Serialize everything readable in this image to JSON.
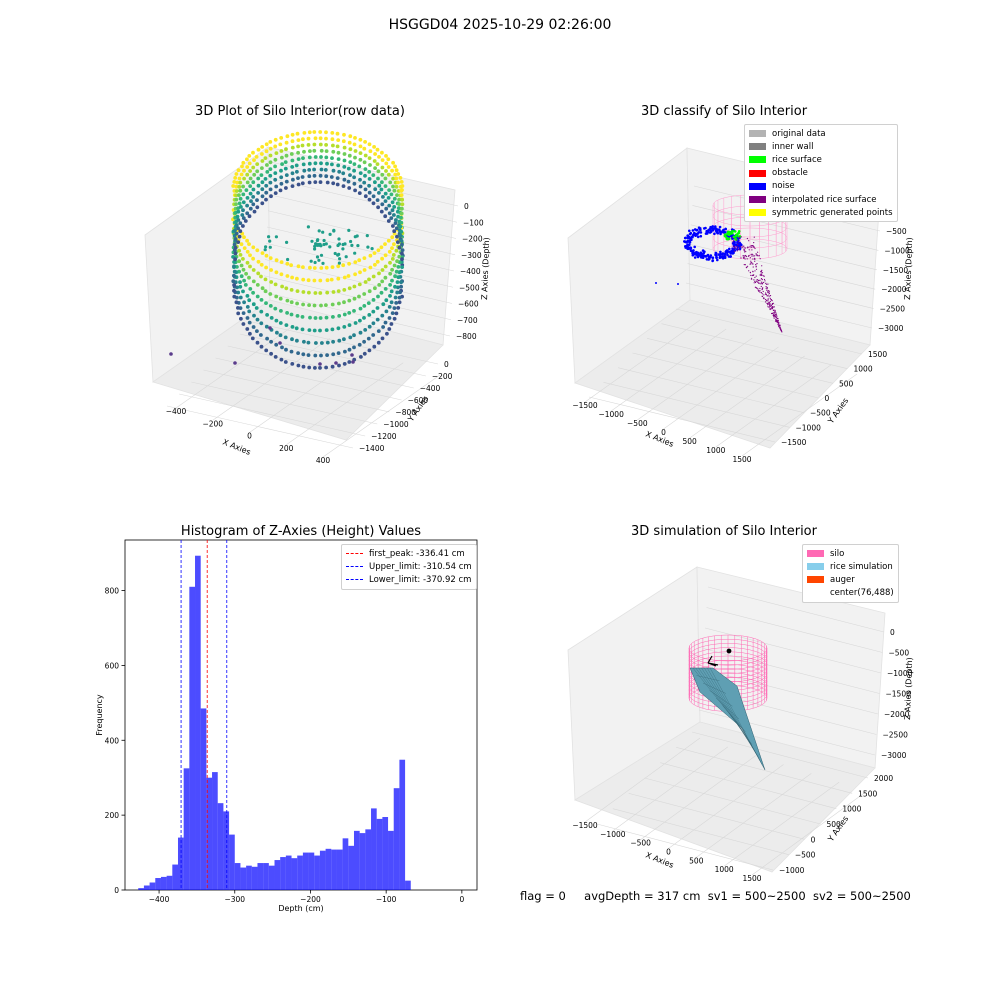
{
  "suptitle": "HSGGD04 2025-10-29 02:26:00",
  "panels": {
    "raw": {
      "title": "3D Plot of Silo Interior(row data)",
      "xlabel": "X Axies",
      "ylabel": "Y Axies",
      "zlabel": "Z Axies (Depth)",
      "x_ticks": [
        "−400",
        "−200",
        "0",
        "200",
        "400"
      ],
      "y_ticks": [
        "0",
        "−200",
        "−400",
        "−600",
        "−800",
        "−1000",
        "−1200",
        "−1400"
      ],
      "z_ticks": [
        "0",
        "−100",
        "−200",
        "−300",
        "−400",
        "−500",
        "−600",
        "−700",
        "−800"
      ]
    },
    "classify": {
      "title": "3D classify of Silo Interior",
      "xlabel": "X Axies",
      "ylabel": "Y Axies",
      "zlabel": "Z Axies (Depth)",
      "x_ticks": [
        "−1500",
        "−1000",
        "−500",
        "0",
        "500",
        "1000",
        "1500"
      ],
      "y_ticks": [
        "1500",
        "1000",
        "500",
        "0",
        "−500",
        "−1000",
        "−1500"
      ],
      "z_ticks": [
        "−500",
        "−1000",
        "−1500",
        "−2000",
        "−2500",
        "−3000"
      ],
      "legend": [
        {
          "label": "original data",
          "color": "#b3b3b3"
        },
        {
          "label": "inner wall",
          "color": "#808080"
        },
        {
          "label": "rice surface",
          "color": "#00ff00"
        },
        {
          "label": "obstacle",
          "color": "#ff0000"
        },
        {
          "label": "noise",
          "color": "#0000ff"
        },
        {
          "label": "interpolated rice surface",
          "color": "#800080"
        },
        {
          "label": "symmetric generated points",
          "color": "#ffff00"
        }
      ]
    },
    "simulation": {
      "title": "3D simulation of Silo Interior",
      "xlabel": "X Axies",
      "ylabel": "Y Axies",
      "zlabel": "Z Axies (Depth)",
      "x_ticks": [
        "−1500",
        "−1000",
        "−500",
        "0",
        "500",
        "1000",
        "1500"
      ],
      "y_ticks": [
        "2000",
        "1500",
        "1000",
        "500",
        "0",
        "−500",
        "−1000"
      ],
      "z_ticks": [
        "0",
        "−500",
        "−1000",
        "−1500",
        "−2000",
        "−2500",
        "−3000"
      ],
      "legend": [
        {
          "label": "silo",
          "color": "#ff69b4"
        },
        {
          "label": "rice simulation",
          "color": "#87ceeb"
        },
        {
          "label": "auger",
          "color": "#ff4500"
        },
        {
          "label": "center(76,488)",
          "color": ""
        }
      ]
    }
  },
  "chart_data": {
    "type": "bar",
    "title": "Histogram of Z-Axies (Height) Values",
    "xlabel": "Depth (cm)",
    "ylabel": "Frequency",
    "xlim": [
      -445,
      20
    ],
    "ylim": [
      0,
      935
    ],
    "x_ticks": [
      -400,
      -300,
      -200,
      -100,
      0
    ],
    "y_ticks": [
      0,
      200,
      400,
      600,
      800
    ],
    "bar_color": "#0000ff",
    "bin_width": 7.5,
    "bin_start": -427.5,
    "values": [
      5,
      12,
      20,
      32,
      35,
      38,
      68,
      140,
      325,
      810,
      893,
      485,
      300,
      315,
      232,
      210,
      148,
      72,
      60,
      65,
      62,
      72,
      72,
      65,
      80,
      88,
      92,
      85,
      92,
      100,
      100,
      92,
      105,
      110,
      108,
      108,
      138,
      118,
      158,
      152,
      162,
      218,
      190,
      195,
      158,
      272,
      348,
      25
    ],
    "reference_lines": [
      {
        "label": "first_peak: -336.41 cm",
        "value": -336.41,
        "color": "#ff0000"
      },
      {
        "label": "Upper_limit: -310.54 cm",
        "value": -310.54,
        "color": "#0000ff"
      },
      {
        "label": "Lower_limit: -370.92 cm",
        "value": -370.92,
        "color": "#0000ff"
      }
    ]
  },
  "status": {
    "flag": "flag = 0",
    "avg_depth": "avgDepth = 317 cm",
    "sv1": "sv1 = 500~2500",
    "sv2": "sv2 = 500~2500"
  }
}
